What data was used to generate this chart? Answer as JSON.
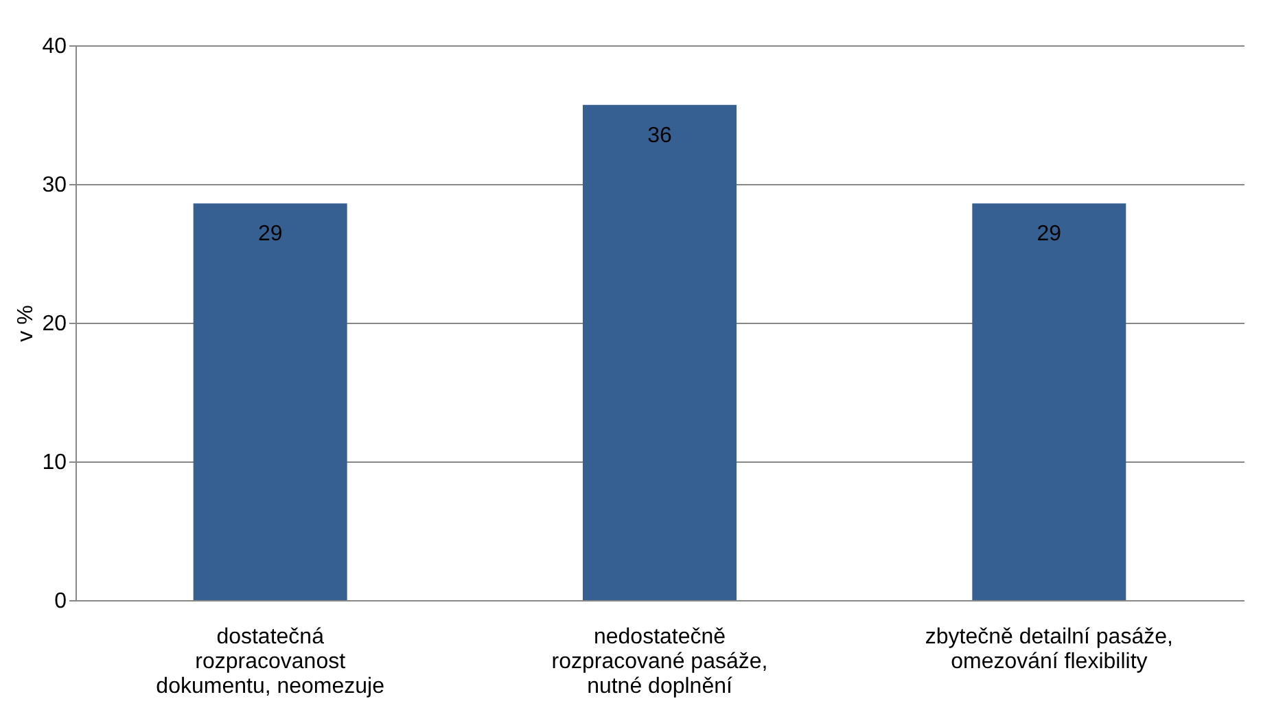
{
  "chart_data": {
    "type": "bar",
    "ylabel": "v %",
    "categories": [
      "dostatečná\nrozpracovanost\ndokumentu, neomezuje",
      "nedostatečně\nrozpracované pasáže,\nnutné doplnění",
      "zbytečně detailní pasáže,\nomezování flexibility"
    ],
    "series": [
      {
        "color": "#376092",
        "values": [
          28.6,
          35.7,
          28.6
        ],
        "value_labels": [
          "29",
          "36",
          "29"
        ]
      }
    ],
    "ylim": [
      0,
      40
    ],
    "yticks": [
      0,
      10,
      20,
      30,
      40
    ],
    "grid": "y"
  }
}
